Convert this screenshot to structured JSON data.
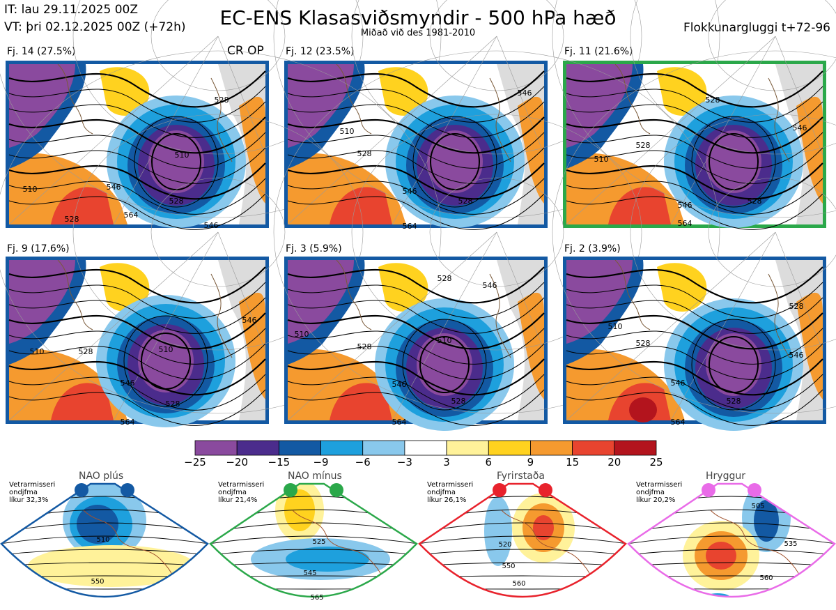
{
  "header": {
    "it": "IT: lau 29.11.2025 00Z",
    "vt": "VT: þri 02.12.2025 00Z  (+72h)",
    "title": "EC-ENS Klasasviðsmyndir - 500 hPa hæð",
    "subtitle": "Miðað við des 1981-2010",
    "window": "Flokkunargluggi t+72-96"
  },
  "cr_op": "CR OP",
  "panels": [
    {
      "label": "Fj. 14 (27.5%)",
      "border_color": "#1359a3",
      "contours": [
        "510",
        "528",
        "546",
        "564",
        "510",
        "528",
        "546",
        "528"
      ]
    },
    {
      "label": "Fj. 12 (23.5%)",
      "border_color": "#1359a3",
      "contours": [
        "510",
        "528",
        "546",
        "564",
        "528",
        "546"
      ]
    },
    {
      "label": "Fj. 11 (21.6%)",
      "border_color": "#2ba84a",
      "contours": [
        "510",
        "528",
        "546",
        "564",
        "528",
        "546",
        "528"
      ]
    },
    {
      "label": "Fj. 9 (17.6%)",
      "border_color": "#1359a3",
      "contours": [
        "510",
        "528",
        "546",
        "564",
        "510",
        "528",
        "546"
      ]
    },
    {
      "label": "Fj. 3 (5.9%)",
      "border_color": "#1359a3",
      "contours": [
        "510",
        "528",
        "546",
        "564",
        "510",
        "528",
        "546",
        "528"
      ]
    },
    {
      "label": "Fj. 2 (3.9%)",
      "border_color": "#1359a3",
      "contours": [
        "510",
        "528",
        "546",
        "564",
        "528",
        "546",
        "528"
      ]
    }
  ],
  "colorbar": {
    "ticks": [
      "−25",
      "−20",
      "−15",
      "−9",
      "−6",
      "−3",
      "3",
      "6",
      "9",
      "15",
      "20",
      "25"
    ],
    "colors": [
      "#8a4a9e",
      "#4b2c8c",
      "#1359a3",
      "#1ea0dd",
      "#89c8ec",
      "#ffffff",
      "#fff29a",
      "#ffd21f",
      "#f59a2f",
      "#e8442f",
      "#b3141d"
    ]
  },
  "regimes": [
    {
      "name": "NAO plús",
      "info": [
        "Vetrarmisseri",
        "ondjfma",
        "líkur 32,3%"
      ],
      "color": "#1359a3",
      "contours": [
        "510",
        "550"
      ]
    },
    {
      "name": "NAO mínus",
      "info": [
        "Vetrarmisseri",
        "ondjfma",
        "líkur 21,4%"
      ],
      "color": "#2ba84a",
      "contours": [
        "525",
        "545",
        "565"
      ]
    },
    {
      "name": "Fyrirstaða",
      "info": [
        "Vetrarmisseri",
        "ondjfma",
        "líkur 26,1%"
      ],
      "color": "#e8222c",
      "contours": [
        "520",
        "550",
        "560"
      ]
    },
    {
      "name": "Hryggur",
      "info": [
        "Vetrarmisseri",
        "ondjfma",
        "líkur 20,2%"
      ],
      "color": "#e96be8",
      "contours": [
        "505",
        "535",
        "560"
      ]
    }
  ]
}
